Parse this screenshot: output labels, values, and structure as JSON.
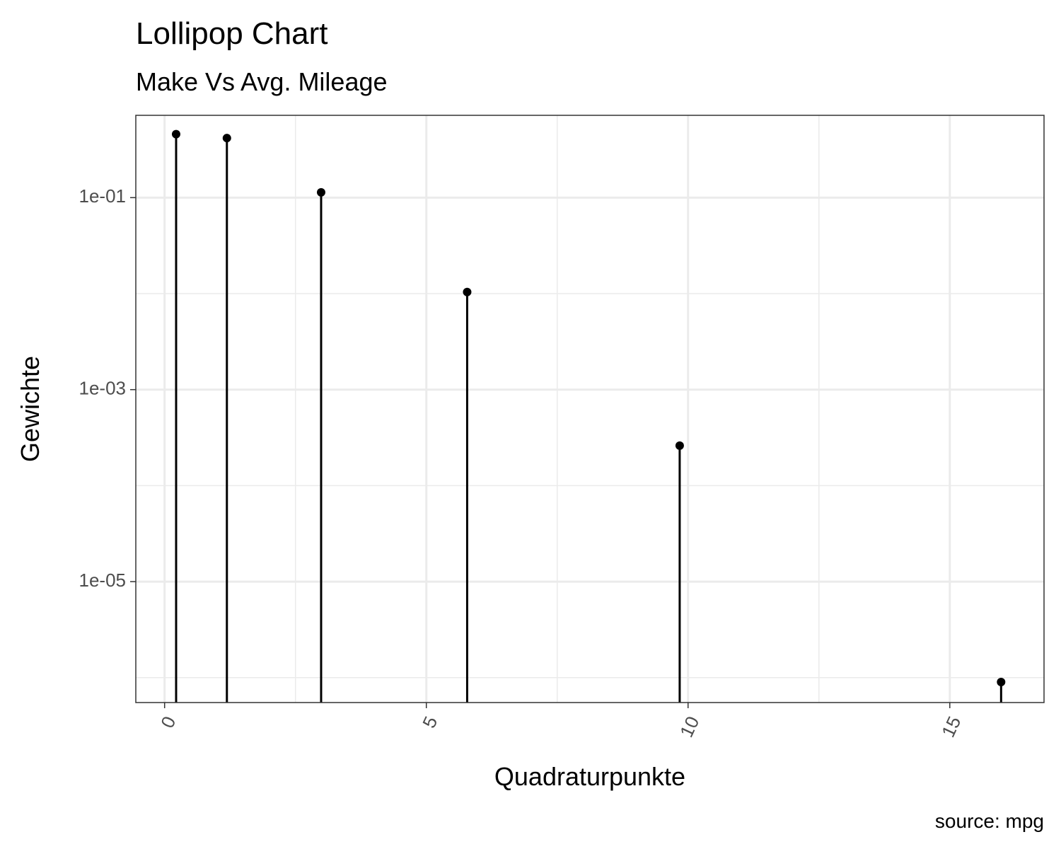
{
  "chart_data": {
    "type": "lollipop",
    "title": "Lollipop Chart",
    "subtitle": "Make Vs Avg. Mileage",
    "xlabel": "Quadraturpunkte",
    "ylabel": "Gewichte",
    "caption": "source: mpg",
    "y_scale": "log10",
    "xlim": [
      -0.55,
      16.8
    ],
    "ylim": [
      5.5e-07,
      0.72
    ],
    "x_ticks": [
      0,
      5,
      10,
      15
    ],
    "x_tick_labels": [
      "0",
      "5",
      "10",
      "15"
    ],
    "y_ticks": [
      0.1,
      0.001,
      1e-05
    ],
    "y_tick_labels": [
      "1e-01",
      "1e-03",
      "1e-05"
    ],
    "grid": true,
    "points": [
      {
        "x": 0.22,
        "y": 0.458
      },
      {
        "x": 1.19,
        "y": 0.417
      },
      {
        "x": 2.99,
        "y": 0.1134
      },
      {
        "x": 5.78,
        "y": 0.0104
      },
      {
        "x": 9.84,
        "y": 0.000261
      },
      {
        "x": 15.98,
        "y": 9e-07
      }
    ],
    "colors": {
      "stem": "#000000",
      "point": "#000000",
      "grid_major": "#ebebeb",
      "grid_minor": "#ebebeb",
      "panel_border": "#333333"
    }
  }
}
